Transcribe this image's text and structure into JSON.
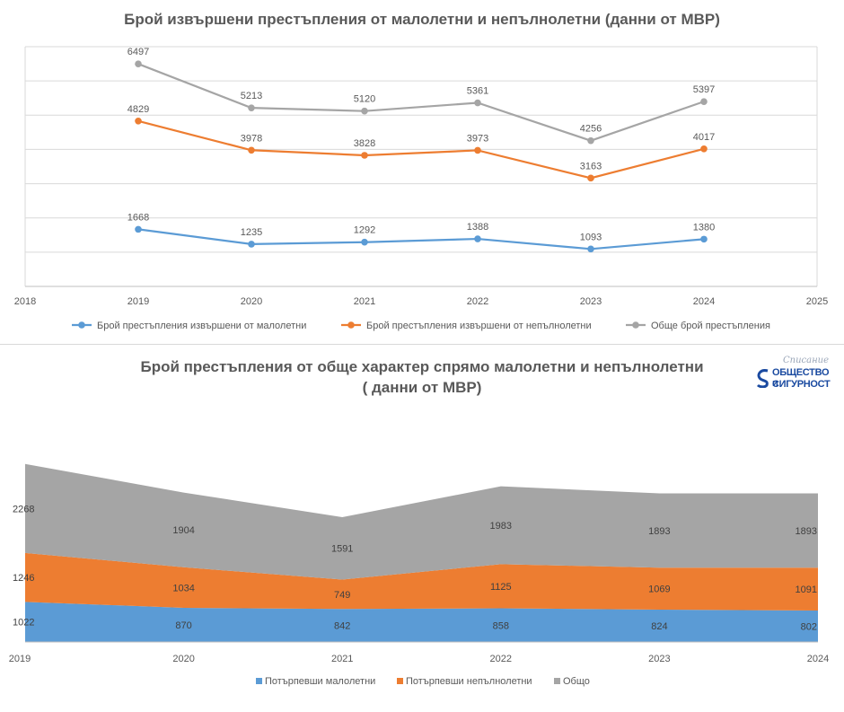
{
  "chart_data": [
    {
      "type": "line",
      "title": "Брой извършени престъпления от малолетни и непълнолетни (данни от МВР)",
      "x_ticks": [
        "2018",
        "2019",
        "2020",
        "2021",
        "2022",
        "2023",
        "2024",
        "2025"
      ],
      "x": [
        2019,
        2020,
        2021,
        2022,
        2023,
        2024
      ],
      "xlim": [
        2018,
        2025
      ],
      "ylim": [
        0,
        7000
      ],
      "grid": true,
      "legend_position": "bottom",
      "series": [
        {
          "name": "Брой престъпления извършени от малолетни",
          "color": "#5b9bd5",
          "values": [
            1668,
            1235,
            1292,
            1388,
            1093,
            1380
          ]
        },
        {
          "name": "Брой престъпления извършени от непълнолетни",
          "color": "#ed7d31",
          "values": [
            4829,
            3978,
            3828,
            3973,
            3163,
            4017
          ]
        },
        {
          "name": "Обще брой престъпления",
          "color": "#a5a5a5",
          "values": [
            6497,
            5213,
            5120,
            5361,
            4256,
            5397
          ]
        }
      ]
    },
    {
      "type": "area",
      "stacked": true,
      "title_lines": [
        "Брой престъпления от обще характер спрямо малолетни и непълнолетни",
        "( данни от МВР)"
      ],
      "categories": [
        "2019",
        "2020",
        "2021",
        "2022",
        "2023",
        "2024"
      ],
      "legend_position": "bottom",
      "series": [
        {
          "name": "Потърпевши малолетни",
          "color": "#5b9bd5",
          "values": [
            1022,
            870,
            842,
            858,
            824,
            802
          ]
        },
        {
          "name": "Потърпевши непълнолетни",
          "color": "#ed7d31",
          "values": [
            1246,
            1034,
            749,
            1125,
            1069,
            1091
          ]
        },
        {
          "name": "Общо",
          "color": "#a5a5a5",
          "values": [
            2268,
            1904,
            1591,
            1983,
            1893,
            1893
          ]
        }
      ]
    }
  ],
  "logo": {
    "script_text": "Списание",
    "line1": "ОБЩЕСТВО и",
    "line2": "СИГУРНОСТ",
    "color": "#1a4aa0"
  }
}
